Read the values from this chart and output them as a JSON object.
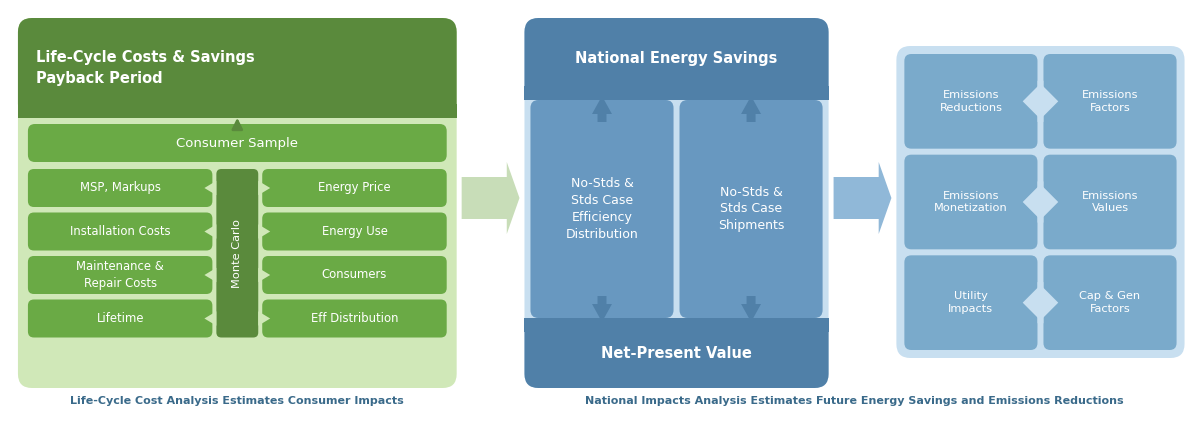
{
  "bg_color": "#ffffff",
  "green_dark": "#5a8a3c",
  "green_light": "#6aaa45",
  "green_box_bg": "#d0e8b8",
  "blue_dark": "#5080a8",
  "blue_medium": "#6898c0",
  "blue_light": "#a8c8e0",
  "blue_box_bg": "#c8dff0",
  "blue_cell_bg": "#7aaacb",
  "white_text": "#ffffff",
  "caption_color": "#3a6a8a",
  "arrow_green": "#c8ddb8",
  "arrow_blue": "#90b8d8",
  "label1": "Life-Cycle Cost Analysis Estimates Consumer Impacts",
  "label2": "National Impacts Analysis Estimates Future Energy Savings and Emissions Reductions",
  "green_title": "Life-Cycle Costs & Savings\nPayback Period",
  "consumer_sample": "Consumer Sample",
  "left_items": [
    "MSP, Markups",
    "Installation Costs",
    "Maintenance &\nRepair Costs",
    "Lifetime"
  ],
  "right_items": [
    "Energy Price",
    "Energy Use",
    "Consumers",
    "Eff Distribution"
  ],
  "monte_carlo": "Monte Carlo",
  "nat_energy": "National Energy Savings",
  "net_present": "Net-Present Value",
  "left_blue": "No-Stds &\nStds Case\nEfficiency\nDistribution",
  "right_blue": "No-Stds &\nStds Case\nShipments",
  "emissions_items": [
    [
      "Emissions\nReductions",
      "Emissions\nFactors"
    ],
    [
      "Emissions\nMonetization",
      "Emissions\nValues"
    ],
    [
      "Utility\nImpacts",
      "Cap & Gen\nFactors"
    ]
  ]
}
